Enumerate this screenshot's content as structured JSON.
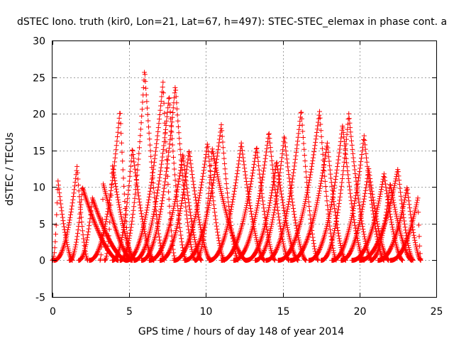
{
  "chart_data": {
    "type": "scatter",
    "title": "dSTEC Iono. truth (kir0, Lon=21, Lat=67, h=497): STEC-STEC_elemax in phase cont. a",
    "xlabel": "GPS time / hours of day 148 of year 2014",
    "ylabel": "dSTEC  / TECUs",
    "xlim": [
      0,
      25
    ],
    "ylim": [
      -5,
      30
    ],
    "xticks": [
      0,
      5,
      10,
      15,
      20,
      25
    ],
    "yticks": [
      -5,
      0,
      5,
      10,
      15,
      20,
      25,
      30
    ],
    "grid": true,
    "marker": "plus",
    "color": "#ff0000",
    "arcs": [
      {
        "start": 0.0,
        "peak": 0.35,
        "end": 1.3,
        "max": 11.0
      },
      {
        "start": 0.1,
        "peak": 1.6,
        "end": 2.3,
        "max": 12.8
      },
      {
        "start": 1.1,
        "peak": 1.95,
        "end": 4.3,
        "max": 10.0
      },
      {
        "start": 1.7,
        "peak": 2.6,
        "end": 4.8,
        "max": 8.5
      },
      {
        "start": 2.4,
        "peak": 4.4,
        "end": 5.1,
        "max": 20.5
      },
      {
        "start": 3.1,
        "peak": 3.3,
        "end": 5.2,
        "max": 10.5
      },
      {
        "start": 3.4,
        "peak": 3.9,
        "end": 5.4,
        "max": 13.0
      },
      {
        "start": 3.9,
        "peak": 5.2,
        "end": 6.6,
        "max": 15.3
      },
      {
        "start": 4.4,
        "peak": 6.0,
        "end": 7.3,
        "max": 26.0
      },
      {
        "start": 4.8,
        "peak": 7.2,
        "end": 8.0,
        "max": 24.3
      },
      {
        "start": 5.3,
        "peak": 7.6,
        "end": 8.7,
        "max": 22.5
      },
      {
        "start": 5.8,
        "peak": 8.0,
        "end": 9.3,
        "max": 23.8
      },
      {
        "start": 6.3,
        "peak": 8.5,
        "end": 9.7,
        "max": 14.5
      },
      {
        "start": 7.0,
        "peak": 8.9,
        "end": 10.3,
        "max": 15.0
      },
      {
        "start": 7.9,
        "peak": 10.1,
        "end": 11.2,
        "max": 16.0
      },
      {
        "start": 8.6,
        "peak": 11.0,
        "end": 12.1,
        "max": 18.5
      },
      {
        "start": 9.3,
        "peak": 10.4,
        "end": 12.6,
        "max": 15.3
      },
      {
        "start": 10.2,
        "peak": 12.3,
        "end": 13.8,
        "max": 16.0
      },
      {
        "start": 11.0,
        "peak": 13.3,
        "end": 14.5,
        "max": 15.5
      },
      {
        "start": 11.8,
        "peak": 14.1,
        "end": 15.4,
        "max": 17.5
      },
      {
        "start": 12.6,
        "peak": 14.6,
        "end": 16.0,
        "max": 13.5
      },
      {
        "start": 13.2,
        "peak": 15.1,
        "end": 16.5,
        "max": 17.0
      },
      {
        "start": 13.9,
        "peak": 16.2,
        "end": 17.3,
        "max": 20.5
      },
      {
        "start": 14.7,
        "peak": 17.4,
        "end": 18.5,
        "max": 20.3
      },
      {
        "start": 15.5,
        "peak": 17.9,
        "end": 19.1,
        "max": 16.0
      },
      {
        "start": 16.7,
        "peak": 18.9,
        "end": 20.3,
        "max": 18.5
      },
      {
        "start": 17.5,
        "peak": 19.3,
        "end": 20.8,
        "max": 20.0
      },
      {
        "start": 18.2,
        "peak": 20.3,
        "end": 21.6,
        "max": 17.0
      },
      {
        "start": 18.8,
        "peak": 20.6,
        "end": 21.9,
        "max": 12.5
      },
      {
        "start": 19.5,
        "peak": 21.6,
        "end": 22.8,
        "max": 11.8
      },
      {
        "start": 20.0,
        "peak": 22.5,
        "end": 23.5,
        "max": 12.5
      },
      {
        "start": 20.7,
        "peak": 22.0,
        "end": 23.4,
        "max": 10.5
      },
      {
        "start": 21.2,
        "peak": 23.1,
        "end": 24.0,
        "max": 10.0
      },
      {
        "start": 22.0,
        "peak": 23.8,
        "end": 24.0,
        "max": 8.5
      }
    ]
  }
}
